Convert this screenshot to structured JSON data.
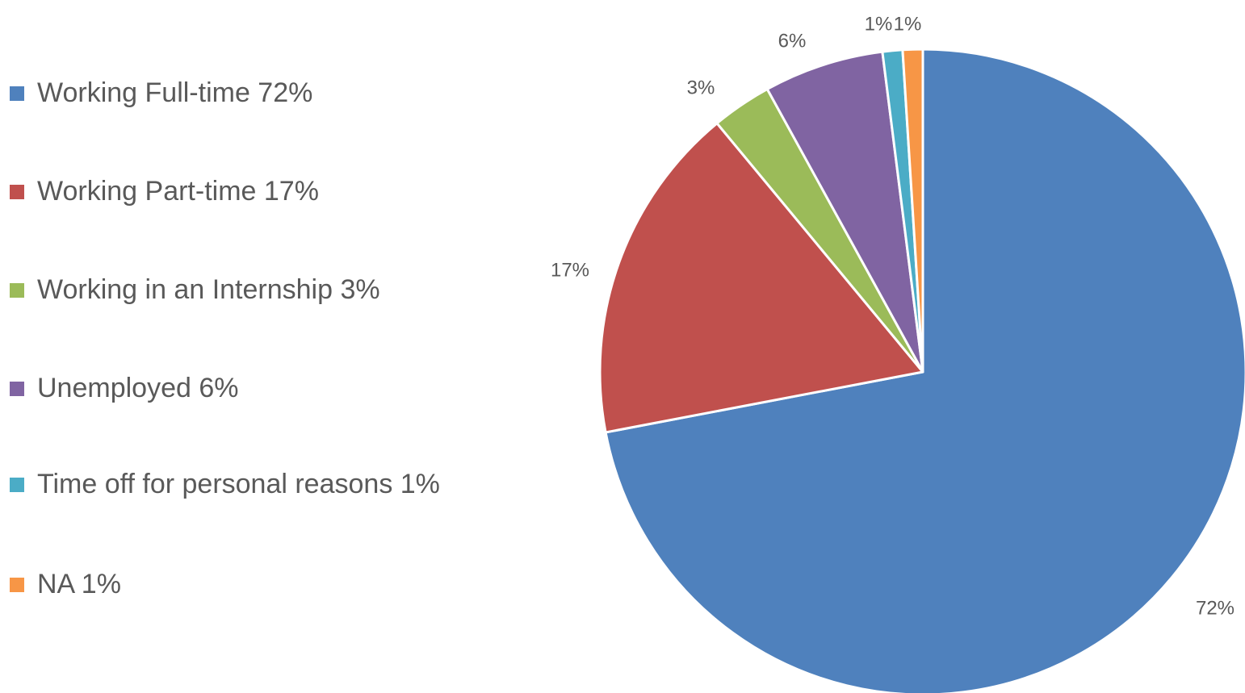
{
  "chart_data": {
    "type": "pie",
    "title": "",
    "slices": [
      {
        "label": "Working Full-time 72%",
        "value": 72,
        "data_label": "72%",
        "color": "#4F81BD"
      },
      {
        "label": "Working Part-time 17%",
        "value": 17,
        "data_label": "17%",
        "color": "#C0504D"
      },
      {
        "label": "Working in an Internship 3%",
        "value": 3,
        "data_label": "3%",
        "color": "#9BBB59"
      },
      {
        "label": "Unemployed 6%",
        "value": 6,
        "data_label": "6%",
        "color": "#8064A2"
      },
      {
        "label": "Time off for personal reasons 1%",
        "value": 1,
        "data_label": "1%",
        "color": "#4BACC6"
      },
      {
        "label": "NA 1%",
        "value": 1,
        "data_label": "1%",
        "color": "#F79646"
      }
    ],
    "legend_position": "left",
    "start_angle": "12 o'clock",
    "direction": "clockwise"
  }
}
